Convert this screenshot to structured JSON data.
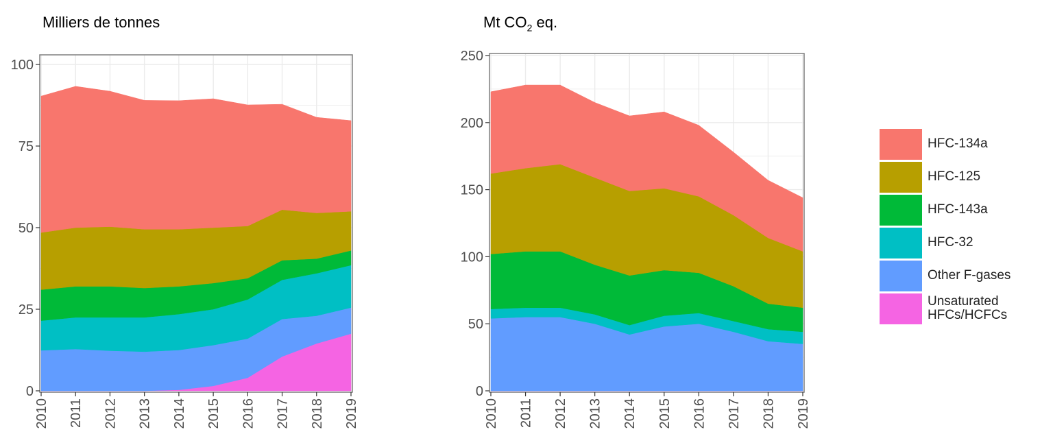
{
  "chart_data": [
    {
      "type": "area",
      "stacked": true,
      "title": "Milliers de tonnes",
      "x": [
        2010,
        2011,
        2012,
        2013,
        2014,
        2015,
        2016,
        2017,
        2018,
        2019
      ],
      "ylim": [
        0,
        100
      ],
      "yticks": [
        0,
        25,
        50,
        75,
        100
      ],
      "grid": true,
      "series": [
        {
          "name": "Unsaturated HFCs/HCFCs",
          "values": [
            0,
            0,
            0,
            0,
            0.3,
            1.5,
            4,
            10.5,
            14.5,
            17.5
          ]
        },
        {
          "name": "Other F-gases",
          "values": [
            12.4,
            12.8,
            12.3,
            12,
            12.2,
            12.5,
            12,
            11.5,
            8.5,
            8
          ]
        },
        {
          "name": "HFC-32",
          "values": [
            9.1,
            9.7,
            10.2,
            10.5,
            11,
            11,
            12,
            12,
            13,
            13
          ]
        },
        {
          "name": "HFC-143a",
          "values": [
            9.5,
            9.5,
            9.5,
            9,
            8.5,
            8,
            6.5,
            6,
            4.5,
            4.5
          ]
        },
        {
          "name": "HFC-125",
          "values": [
            17.5,
            18,
            18.3,
            18,
            17.5,
            17,
            16,
            15.5,
            14,
            12
          ]
        },
        {
          "name": "HFC-134a",
          "values": [
            41.8,
            43.3,
            41.5,
            39.5,
            39.4,
            39.5,
            37.1,
            32.3,
            29.3,
            27.8
          ]
        }
      ]
    },
    {
      "type": "area",
      "stacked": true,
      "title": "Mt CO",
      "title_sub": "2",
      "title_suffix": " eq.",
      "x": [
        2010,
        2011,
        2012,
        2013,
        2014,
        2015,
        2016,
        2017,
        2018,
        2019
      ],
      "ylim": [
        0,
        250
      ],
      "yticks": [
        0,
        50,
        100,
        150,
        200,
        250
      ],
      "grid": true,
      "series": [
        {
          "name": "Unsaturated HFCs/HCFCs",
          "values": [
            0,
            0,
            0,
            0,
            0,
            0,
            0,
            0,
            0,
            0
          ]
        },
        {
          "name": "Other F-gases",
          "values": [
            54,
            55,
            55,
            50,
            42,
            48,
            50,
            44,
            37,
            35
          ]
        },
        {
          "name": "HFC-32",
          "values": [
            7,
            7,
            7,
            7,
            7,
            8,
            8,
            8,
            9,
            9
          ]
        },
        {
          "name": "HFC-143a",
          "values": [
            41,
            42,
            42,
            37,
            37,
            34,
            30,
            26,
            19,
            18
          ]
        },
        {
          "name": "HFC-125",
          "values": [
            60,
            62,
            65,
            65,
            63,
            61,
            57,
            53,
            49,
            42
          ]
        },
        {
          "name": "HFC-134a",
          "values": [
            61,
            62,
            59,
            56,
            56,
            57,
            53,
            47,
            43,
            40
          ]
        }
      ]
    }
  ],
  "legend": {
    "placement": "right",
    "items": [
      {
        "label": "HFC-134a",
        "color": "#F8766D"
      },
      {
        "label": "HFC-125",
        "color": "#B79F00"
      },
      {
        "label": "HFC-143a",
        "color": "#00BA38"
      },
      {
        "label": "HFC-32",
        "color": "#00BFC4"
      },
      {
        "label": "Other F-gases",
        "color": "#619CFF"
      },
      {
        "label": "Unsaturated HFCs/HCFCs",
        "color": "#F564E3"
      }
    ]
  }
}
